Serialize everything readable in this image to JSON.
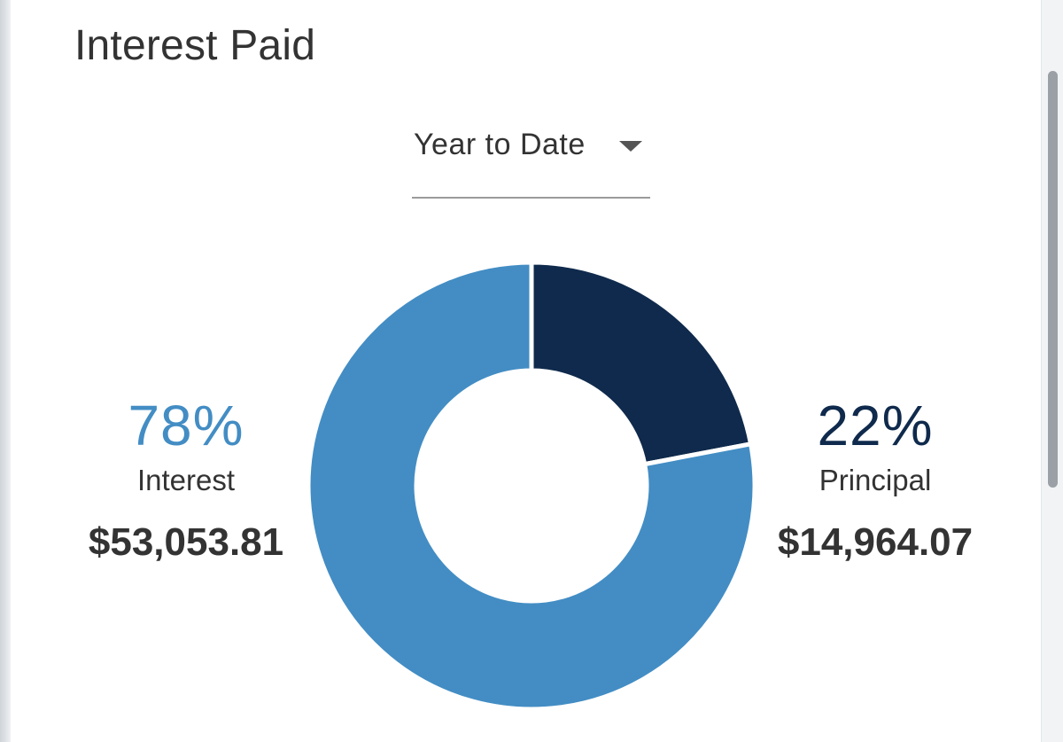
{
  "card": {
    "title": "Interest Paid",
    "period_select": {
      "value": "Year to Date"
    }
  },
  "breakdown": {
    "interest": {
      "percent_label": "78%",
      "label": "Interest",
      "amount": "$53,053.81",
      "color": "#438dc4"
    },
    "principal": {
      "percent_label": "22%",
      "label": "Principal",
      "amount": "$14,964.07",
      "color": "#0f2a4c"
    }
  },
  "chart_data": {
    "type": "pie",
    "categories": [
      "Principal",
      "Interest"
    ],
    "values": [
      14964.07,
      53053.81
    ],
    "colors": [
      "#0f2a4c",
      "#438dc4"
    ],
    "donut": true
  }
}
